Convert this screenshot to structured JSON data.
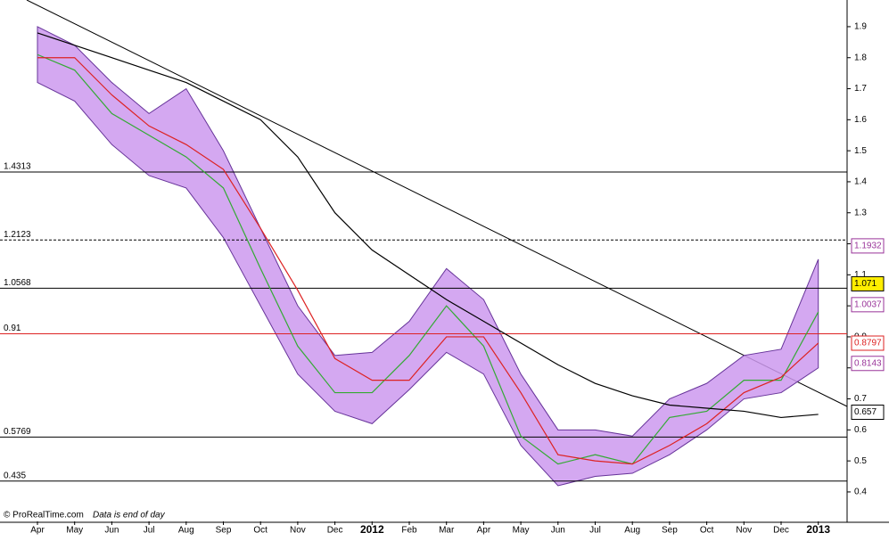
{
  "chart_data": {
    "type": "line",
    "footer": {
      "source": "© ProRealTime.com",
      "note": "Data is end of day"
    },
    "categories": [
      "Apr",
      "May",
      "Jun",
      "Jul",
      "Aug",
      "Sep",
      "Oct",
      "Nov",
      "Dec",
      "2012",
      "Feb",
      "Mar",
      "Apr",
      "May",
      "Jun",
      "Jul",
      "Aug",
      "Sep",
      "Oct",
      "Nov",
      "Dec",
      "2013"
    ],
    "ylim": [
      0.305,
      1.986
    ],
    "yticks": [
      0.4,
      0.5,
      0.6,
      0.7,
      0.8,
      0.9,
      1.0,
      1.1,
      1.2,
      1.3,
      1.4,
      1.5,
      1.6,
      1.7,
      1.8,
      1.9
    ],
    "band": {
      "color": "#cc99ee",
      "upper": [
        1.9,
        1.84,
        1.72,
        1.62,
        1.7,
        1.5,
        1.25,
        1.0,
        0.84,
        0.85,
        0.95,
        1.12,
        1.02,
        0.78,
        0.6,
        0.6,
        0.58,
        0.7,
        0.75,
        0.84,
        0.86,
        1.15
      ],
      "lower": [
        1.72,
        1.66,
        1.52,
        1.42,
        1.38,
        1.22,
        1.0,
        0.78,
        0.66,
        0.62,
        0.73,
        0.85,
        0.78,
        0.55,
        0.42,
        0.45,
        0.46,
        0.52,
        0.6,
        0.7,
        0.72,
        0.8
      ]
    },
    "series": [
      {
        "color": "#33aa33",
        "values": [
          1.81,
          1.76,
          1.62,
          1.55,
          1.48,
          1.38,
          1.12,
          0.87,
          0.72,
          0.72,
          0.84,
          1.0,
          0.87,
          0.58,
          0.49,
          0.52,
          0.49,
          0.64,
          0.66,
          0.76,
          0.76,
          0.98
        ]
      },
      {
        "color": "#dd2222",
        "values": [
          1.8,
          1.8,
          1.68,
          1.58,
          1.52,
          1.44,
          1.25,
          1.05,
          0.83,
          0.76,
          0.76,
          0.9,
          0.9,
          0.72,
          0.52,
          0.5,
          0.49,
          0.55,
          0.62,
          0.72,
          0.77,
          0.88
        ]
      },
      {
        "color": "#000000",
        "values": [
          1.88,
          1.84,
          1.8,
          1.76,
          1.72,
          1.66,
          1.6,
          1.48,
          1.3,
          1.18,
          1.1,
          1.02,
          0.95,
          0.88,
          0.81,
          0.75,
          0.71,
          0.68,
          0.67,
          0.66,
          0.64,
          0.65
        ]
      }
    ],
    "levels": [
      {
        "value": 1.4313,
        "color": "#000000",
        "dashed": false
      },
      {
        "value": 1.2123,
        "color": "#000000",
        "dashed": true
      },
      {
        "value": 1.0568,
        "color": "#000000",
        "dashed": false
      },
      {
        "value": 0.91,
        "color": "#dd2222",
        "dashed": false
      },
      {
        "value": 0.5769,
        "color": "#000000",
        "dashed": false
      },
      {
        "value": 0.435,
        "color": "#000000",
        "dashed": false
      }
    ],
    "price_tags": [
      {
        "value": 1.1932,
        "color": "#993399",
        "bg": "#ffffff"
      },
      {
        "value": 1.071,
        "color": "#000000",
        "bg": "#ffee00"
      },
      {
        "value": 1.0037,
        "color": "#993399",
        "bg": "#ffffff"
      },
      {
        "value": 0.8797,
        "color": "#dd2222",
        "bg": "#ffffff"
      },
      {
        "value": 0.8143,
        "color": "#993399",
        "bg": "#ffffff"
      },
      {
        "value": 0.657,
        "color": "#000000",
        "bg": "#ffffff"
      }
    ]
  }
}
